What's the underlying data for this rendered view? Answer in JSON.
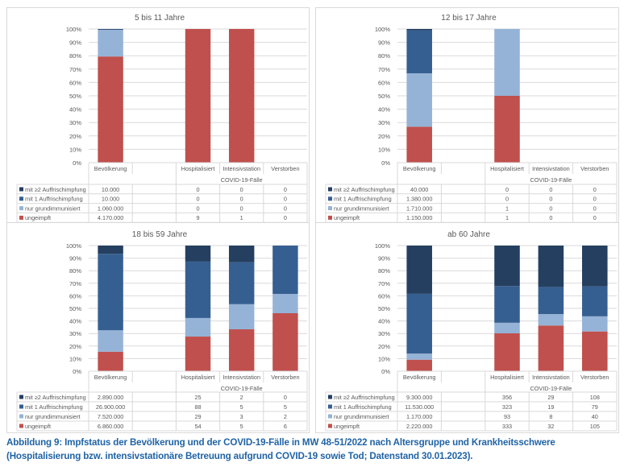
{
  "caption": {
    "line1": "Abbildung 9: Impfstatus der Bevölkerung und der COVID-19-Fälle in MW 48-51/2022 nach Altersgruppe und Krankheitsschwere",
    "line2": "(Hospitalisierung bzw. intensivstationäre Betreuung aufgrund COVID-19 sowie Tod; Datenstand 30.01.2023)."
  },
  "colors": {
    "booster2": "#243f60",
    "booster1": "#365f91",
    "grund": "#95b3d7",
    "ungeimpft": "#c0504d"
  },
  "chart_data": [
    {
      "type": "bar",
      "stacked": "percent",
      "title": "5 bis 11 Jahre",
      "categories": [
        "Bevölkerung",
        "",
        "Hospitalisiert",
        "Intensivstation",
        "Verstorben"
      ],
      "group_label": "COVID-19-Fälle",
      "yticks": [
        "0%",
        "10%",
        "20%",
        "30%",
        "40%",
        "50%",
        "60%",
        "70%",
        "80%",
        "90%",
        "100%"
      ],
      "ylim": [
        0,
        100
      ],
      "grid": true,
      "legend": "table-bottom",
      "series": [
        {
          "name": "mit ≥2 Auffrischimpfung",
          "key": "booster2",
          "values": [
            "10.000",
            "",
            "0",
            "0",
            "0"
          ],
          "numeric": [
            10000,
            0,
            0,
            0,
            0
          ]
        },
        {
          "name": "mit 1 Auffrischimpfung",
          "key": "booster1",
          "values": [
            "10.000",
            "",
            "0",
            "0",
            "0"
          ],
          "numeric": [
            10000,
            0,
            0,
            0,
            0
          ]
        },
        {
          "name": "nur grundimmunisiert",
          "key": "grund",
          "values": [
            "1.060.000",
            "",
            "0",
            "0",
            "0"
          ],
          "numeric": [
            1060000,
            0,
            0,
            0,
            0
          ]
        },
        {
          "name": "ungeimpft",
          "key": "ungeimpft",
          "values": [
            "4.170.000",
            "",
            "9",
            "1",
            "0"
          ],
          "numeric": [
            4170000,
            0,
            9,
            1,
            0
          ]
        }
      ]
    },
    {
      "type": "bar",
      "stacked": "percent",
      "title": "12 bis 17 Jahre",
      "categories": [
        "Bevölkerung",
        "",
        "Hospitalisiert",
        "Intensivstation",
        "Verstorben"
      ],
      "group_label": "COVID-19-Fälle",
      "yticks": [
        "0%",
        "10%",
        "20%",
        "30%",
        "40%",
        "50%",
        "60%",
        "70%",
        "80%",
        "90%",
        "100%"
      ],
      "ylim": [
        0,
        100
      ],
      "grid": true,
      "legend": "table-bottom",
      "series": [
        {
          "name": "mit ≥2 Auffrischimpfung",
          "key": "booster2",
          "values": [
            "40.000",
            "",
            "0",
            "0",
            "0"
          ],
          "numeric": [
            40000,
            0,
            0,
            0,
            0
          ]
        },
        {
          "name": "mit 1 Auffrischimpfung",
          "key": "booster1",
          "values": [
            "1.380.000",
            "",
            "0",
            "0",
            "0"
          ],
          "numeric": [
            1380000,
            0,
            0,
            0,
            0
          ]
        },
        {
          "name": "nur grundimmunisiert",
          "key": "grund",
          "values": [
            "1.710.000",
            "",
            "1",
            "0",
            "0"
          ],
          "numeric": [
            1710000,
            0,
            1,
            0,
            0
          ]
        },
        {
          "name": "ungeimpft",
          "key": "ungeimpft",
          "values": [
            "1.150.000",
            "",
            "1",
            "0",
            "0"
          ],
          "numeric": [
            1150000,
            0,
            1,
            0,
            0
          ]
        }
      ]
    },
    {
      "type": "bar",
      "stacked": "percent",
      "title": "18 bis 59 Jahre",
      "categories": [
        "Bevölkerung",
        "",
        "Hospitalisiert",
        "Intensivstation",
        "Verstorben"
      ],
      "group_label": "COVID-19-Fälle",
      "yticks": [
        "0%",
        "10%",
        "20%",
        "30%",
        "40%",
        "50%",
        "60%",
        "70%",
        "80%",
        "90%",
        "100%"
      ],
      "ylim": [
        0,
        100
      ],
      "grid": true,
      "legend": "table-bottom",
      "series": [
        {
          "name": "mit ≥2 Auffrischimpfung",
          "key": "booster2",
          "values": [
            "2.890.000",
            "",
            "25",
            "2",
            "0"
          ],
          "numeric": [
            2890000,
            0,
            25,
            2,
            0
          ]
        },
        {
          "name": "mit 1 Auffrischimpfung",
          "key": "booster1",
          "values": [
            "26.900.000",
            "",
            "88",
            "5",
            "5"
          ],
          "numeric": [
            26900000,
            0,
            88,
            5,
            5
          ]
        },
        {
          "name": "nur grundimmunisiert",
          "key": "grund",
          "values": [
            "7.520.000",
            "",
            "29",
            "3",
            "2"
          ],
          "numeric": [
            7520000,
            0,
            29,
            3,
            2
          ]
        },
        {
          "name": "ungeimpft",
          "key": "ungeimpft",
          "values": [
            "6.860.000",
            "",
            "54",
            "5",
            "6"
          ],
          "numeric": [
            6860000,
            0,
            54,
            5,
            6
          ]
        }
      ]
    },
    {
      "type": "bar",
      "stacked": "percent",
      "title": "ab 60 Jahre",
      "categories": [
        "Bevölkerung",
        "",
        "Hospitalisiert",
        "Intensivstation",
        "Verstorben"
      ],
      "group_label": "COVID-19-Fälle",
      "yticks": [
        "0%",
        "10%",
        "20%",
        "30%",
        "40%",
        "50%",
        "60%",
        "70%",
        "80%",
        "90%",
        "100%"
      ],
      "ylim": [
        0,
        100
      ],
      "grid": true,
      "legend": "table-bottom",
      "series": [
        {
          "name": "mit ≥2 Auffrischimpfung",
          "key": "booster2",
          "values": [
            "9.300.000",
            "",
            "356",
            "29",
            "108"
          ],
          "numeric": [
            9300000,
            0,
            356,
            29,
            108
          ]
        },
        {
          "name": "mit 1 Auffrischimpfung",
          "key": "booster1",
          "values": [
            "11.530.000",
            "",
            "323",
            "19",
            "79"
          ],
          "numeric": [
            11530000,
            0,
            323,
            19,
            79
          ]
        },
        {
          "name": "nur grundimmunisiert",
          "key": "grund",
          "values": [
            "1.170.000",
            "",
            "93",
            "8",
            "40"
          ],
          "numeric": [
            1170000,
            0,
            93,
            8,
            40
          ]
        },
        {
          "name": "ungeimpft",
          "key": "ungeimpft",
          "values": [
            "2.220.000",
            "",
            "333",
            "32",
            "105"
          ],
          "numeric": [
            2220000,
            0,
            333,
            32,
            105
          ]
        }
      ]
    }
  ]
}
